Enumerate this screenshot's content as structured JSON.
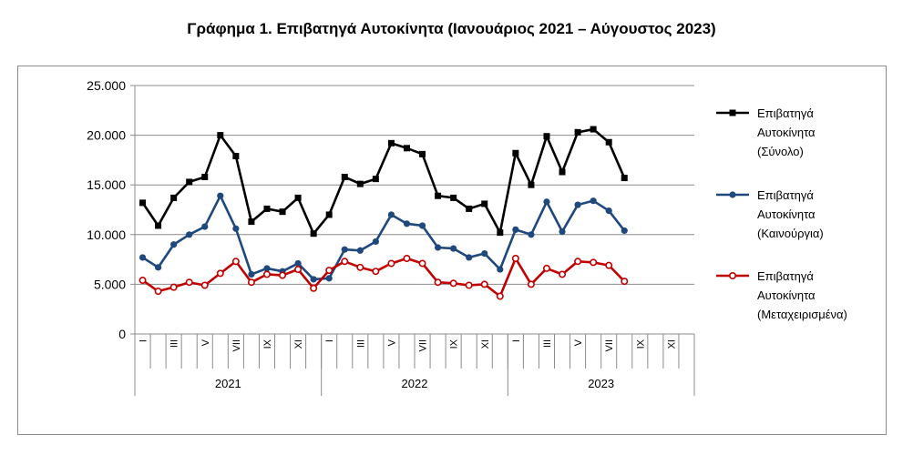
{
  "title": "Γράφημα 1. Επιβατηγά Αυτοκίνητα (Ιανουάριος 2021 – Αύγουστος 2023)",
  "chart_data": {
    "type": "line",
    "title": "Γράφημα 1. Επιβατηγά Αυτοκίνητα (Ιανουάριος 2021 – Αύγουστος 2023)",
    "ylim": [
      0,
      25000
    ],
    "yticks": [
      "0",
      "5.000",
      "10.000",
      "15.000",
      "20.000",
      "25.000"
    ],
    "month_labels": [
      "I",
      "",
      "III",
      "",
      "V",
      "",
      "VII",
      "",
      "IX",
      "",
      "XI",
      "",
      "I",
      "",
      "III",
      "",
      "V",
      "",
      "VII",
      "",
      "IX",
      "",
      "XI",
      "",
      "I",
      "",
      "III",
      "",
      "V",
      "",
      "VII",
      "",
      "IX",
      "",
      "XI",
      ""
    ],
    "years": [
      "2021",
      "2022",
      "2023"
    ],
    "grid": true,
    "legend_position": "right",
    "series": [
      {
        "name": "Επιβατηγά Αυτοκίνητα (Σύνολο)",
        "legend_lines": [
          "Επιβατηγά",
          "Αυτοκίνητα",
          "(Σύνολο)"
        ],
        "color": "#000000",
        "marker": "square",
        "values": [
          13200,
          10900,
          13700,
          15300,
          15800,
          20000,
          17900,
          11300,
          12600,
          12300,
          13700,
          10100,
          12000,
          15800,
          15100,
          15600,
          19200,
          18700,
          18100,
          13900,
          13700,
          12600,
          13100,
          10200,
          18200,
          15000,
          19900,
          16300,
          20300,
          20600,
          19300,
          15700
        ]
      },
      {
        "name": "Επιβατηγά Αυτοκίνητα (Καινούργια)",
        "legend_lines": [
          "Επιβατηγά",
          "Αυτοκίνητα",
          "(Καινούργια)"
        ],
        "color": "#1f497d",
        "marker": "circle",
        "values": [
          7700,
          6700,
          9000,
          10000,
          10800,
          13900,
          10600,
          6000,
          6600,
          6300,
          7100,
          5500,
          5600,
          8500,
          8400,
          9300,
          12000,
          11100,
          10900,
          8700,
          8600,
          7700,
          8100,
          6500,
          10500,
          10000,
          13300,
          10300,
          13000,
          13400,
          12400,
          10400
        ]
      },
      {
        "name": "Επιβατηγά Αυτοκίνητα (Μεταχειρισμένα)",
        "legend_lines": [
          "Επιβατηγά",
          "Αυτοκίνητα",
          "(Μεταχειρισμένα)"
        ],
        "color": "#c00000",
        "marker": "hollow-circle",
        "values": [
          5400,
          4300,
          4700,
          5200,
          4900,
          6100,
          7300,
          5200,
          6000,
          5900,
          6500,
          4600,
          6400,
          7300,
          6700,
          6300,
          7100,
          7600,
          7100,
          5200,
          5100,
          4900,
          5000,
          3800,
          7600,
          5000,
          6600,
          6000,
          7300,
          7200,
          6900,
          5300
        ]
      }
    ]
  }
}
